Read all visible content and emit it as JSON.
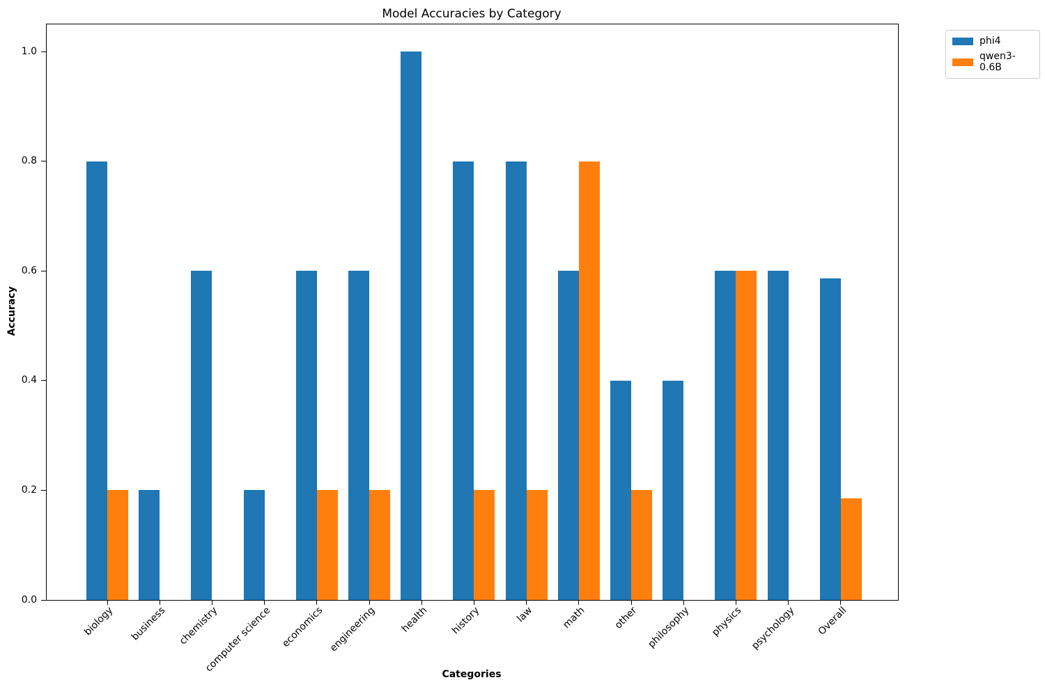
{
  "chart_data": {
    "type": "bar",
    "title": "Model Accuracies by Category",
    "xlabel": "Categories",
    "ylabel": "Accuracy",
    "categories": [
      "biology",
      "business",
      "chemistry",
      "computer science",
      "economics",
      "engineering",
      "health",
      "history",
      "law",
      "math",
      "other",
      "philosophy",
      "physics",
      "psychology",
      "Overall"
    ],
    "series": [
      {
        "name": "phi4",
        "color": "#1f77b4",
        "values": [
          0.8,
          0.2,
          0.6,
          0.2,
          0.6,
          0.6,
          1.0,
          0.8,
          0.8,
          0.6,
          0.4,
          0.4,
          0.6,
          0.6,
          0.586
        ]
      },
      {
        "name": "qwen3-0.6B",
        "color": "#ff7f0e",
        "values": [
          0.2,
          0.0,
          0.0,
          0.0,
          0.2,
          0.2,
          0.0,
          0.2,
          0.2,
          0.8,
          0.2,
          0.0,
          0.6,
          0.0,
          0.186
        ]
      }
    ],
    "ylim": [
      0,
      1.05
    ],
    "yticks": [
      "0.0",
      "0.2",
      "0.4",
      "0.6",
      "0.8",
      "1.0"
    ],
    "ytick_values": [
      0.0,
      0.2,
      0.4,
      0.6,
      0.8,
      1.0
    ],
    "grid": false,
    "legend_position": "upper right, outside plot",
    "bar_width_fraction": 0.4,
    "xtick_rotation_deg": 45
  }
}
